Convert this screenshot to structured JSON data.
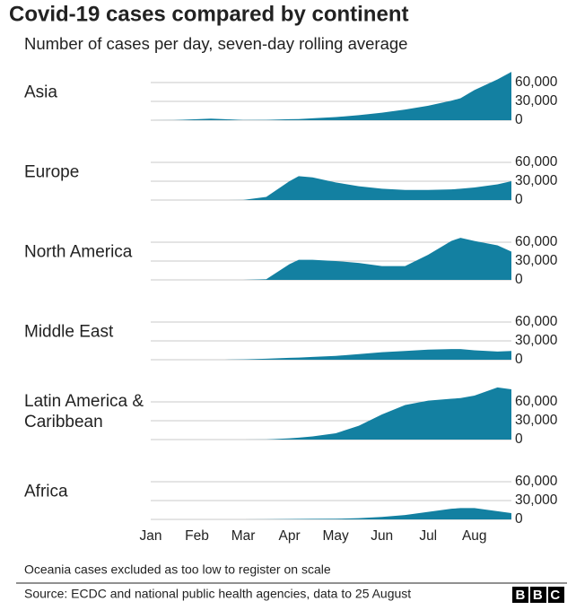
{
  "title": "Covid-19 cases compared by continent",
  "subtitle": "Number of cases per day, seven-day rolling average",
  "chart_data": [
    {
      "type": "area",
      "title": "Asia",
      "color": "#1380a1",
      "x": [
        1,
        1.5,
        2,
        2.3,
        2.6,
        3,
        3.5,
        4,
        4.2,
        4.5,
        5,
        5.5,
        6,
        6.5,
        7,
        7.5,
        7.7,
        8,
        8.5,
        8.8
      ],
      "values": [
        0,
        200,
        1500,
        2500,
        1500,
        300,
        600,
        1500,
        1800,
        3000,
        5000,
        8000,
        12000,
        17000,
        23000,
        31000,
        35000,
        48000,
        65000,
        77000
      ],
      "xlim": [
        1,
        8.8
      ],
      "ylim": [
        0,
        90000
      ],
      "yticks": [
        0,
        {
          "value": 30000,
          "label": "30,000"
        },
        {
          "value": 60000,
          "label": "60,000"
        }
      ],
      "grid": true
    },
    {
      "type": "area",
      "title": "Europe",
      "color": "#1380a1",
      "x": [
        1,
        1.5,
        2,
        2.3,
        2.6,
        3,
        3.5,
        4,
        4.2,
        4.5,
        5,
        5.5,
        6,
        6.5,
        7,
        7.5,
        7.7,
        8,
        8.5,
        8.8
      ],
      "values": [
        0,
        0,
        0,
        0,
        0,
        200,
        5000,
        30000,
        38000,
        36000,
        28000,
        22000,
        18000,
        16000,
        16000,
        17000,
        18000,
        20000,
        25000,
        30000
      ],
      "xlim": [
        1,
        8.8
      ],
      "ylim": [
        0,
        90000
      ],
      "yticks": [
        0,
        {
          "value": 30000,
          "label": "30,000"
        },
        {
          "value": 60000,
          "label": "60,000"
        }
      ],
      "grid": true
    },
    {
      "type": "area",
      "title": "North America",
      "color": "#1380a1",
      "x": [
        1,
        1.5,
        2,
        2.3,
        2.6,
        3,
        3.5,
        4,
        4.2,
        4.5,
        5,
        5.5,
        6,
        6.5,
        7,
        7.5,
        7.7,
        8,
        8.5,
        8.8
      ],
      "values": [
        0,
        0,
        0,
        0,
        0,
        0,
        1000,
        25000,
        32000,
        32000,
        30000,
        27000,
        22000,
        22000,
        40000,
        62000,
        67000,
        62000,
        55000,
        45000
      ],
      "xlim": [
        1,
        8.8
      ],
      "ylim": [
        0,
        90000
      ],
      "yticks": [
        0,
        {
          "value": 30000,
          "label": "30,000"
        },
        {
          "value": 60000,
          "label": "60,000"
        }
      ],
      "grid": true
    },
    {
      "type": "area",
      "title": "Middle East",
      "color": "#1380a1",
      "x": [
        1,
        1.5,
        2,
        2.3,
        2.6,
        3,
        3.5,
        4,
        4.2,
        4.5,
        5,
        5.5,
        6,
        6.5,
        7,
        7.5,
        7.7,
        8,
        8.5,
        8.8
      ],
      "values": [
        0,
        0,
        0,
        0,
        0,
        500,
        1500,
        3000,
        3500,
        4500,
        6000,
        9000,
        12000,
        14000,
        16000,
        17000,
        17000,
        15000,
        13000,
        14000
      ],
      "xlim": [
        1,
        8.8
      ],
      "ylim": [
        0,
        90000
      ],
      "yticks": [
        0,
        {
          "value": 30000,
          "label": "30,000"
        },
        {
          "value": 60000,
          "label": "60,000"
        }
      ],
      "grid": true
    },
    {
      "type": "area",
      "title": "Latin America & Caribbean",
      "color": "#1380a1",
      "x": [
        1,
        1.5,
        2,
        2.3,
        2.6,
        3,
        3.5,
        4,
        4.2,
        4.5,
        5,
        5.5,
        6,
        6.5,
        7,
        7.5,
        7.7,
        8,
        8.5,
        8.8
      ],
      "values": [
        0,
        0,
        0,
        0,
        0,
        0,
        200,
        2000,
        3000,
        5000,
        10000,
        22000,
        40000,
        55000,
        62000,
        65000,
        66000,
        70000,
        83000,
        80000
      ],
      "xlim": [
        1,
        8.8
      ],
      "ylim": [
        0,
        90000
      ],
      "yticks": [
        0,
        {
          "value": 30000,
          "label": "30,000"
        },
        {
          "value": 60000,
          "label": "60,000"
        }
      ],
      "grid": true
    },
    {
      "type": "area",
      "title": "Africa",
      "color": "#1380a1",
      "x": [
        1,
        1.5,
        2,
        2.3,
        2.6,
        3,
        3.5,
        4,
        4.2,
        4.5,
        5,
        5.5,
        6,
        6.5,
        7,
        7.5,
        7.7,
        8,
        8.5,
        8.8
      ],
      "values": [
        0,
        0,
        0,
        0,
        0,
        0,
        200,
        500,
        700,
        800,
        1000,
        2000,
        4000,
        7000,
        12000,
        17000,
        18000,
        18000,
        13000,
        10000
      ],
      "xlim": [
        1,
        8.8
      ],
      "ylim": [
        0,
        90000
      ],
      "yticks": [
        0,
        {
          "value": 30000,
          "label": "30,000"
        },
        {
          "value": 60000,
          "label": "60,000"
        }
      ],
      "grid": true,
      "xticks": [
        {
          "value": 1,
          "label": "Jan"
        },
        {
          "value": 2,
          "label": "Feb"
        },
        {
          "value": 3,
          "label": "Mar"
        },
        {
          "value": 4,
          "label": "Apr"
        },
        {
          "value": 5,
          "label": "May"
        },
        {
          "value": 6,
          "label": "Jun"
        },
        {
          "value": 7,
          "label": "Jul"
        },
        {
          "value": 8,
          "label": "Aug"
        }
      ]
    }
  ],
  "note": "Oceania cases excluded as too low to register on scale",
  "source": "Source: ECDC and national public health agencies, data to 25 August",
  "logo": "BBC"
}
